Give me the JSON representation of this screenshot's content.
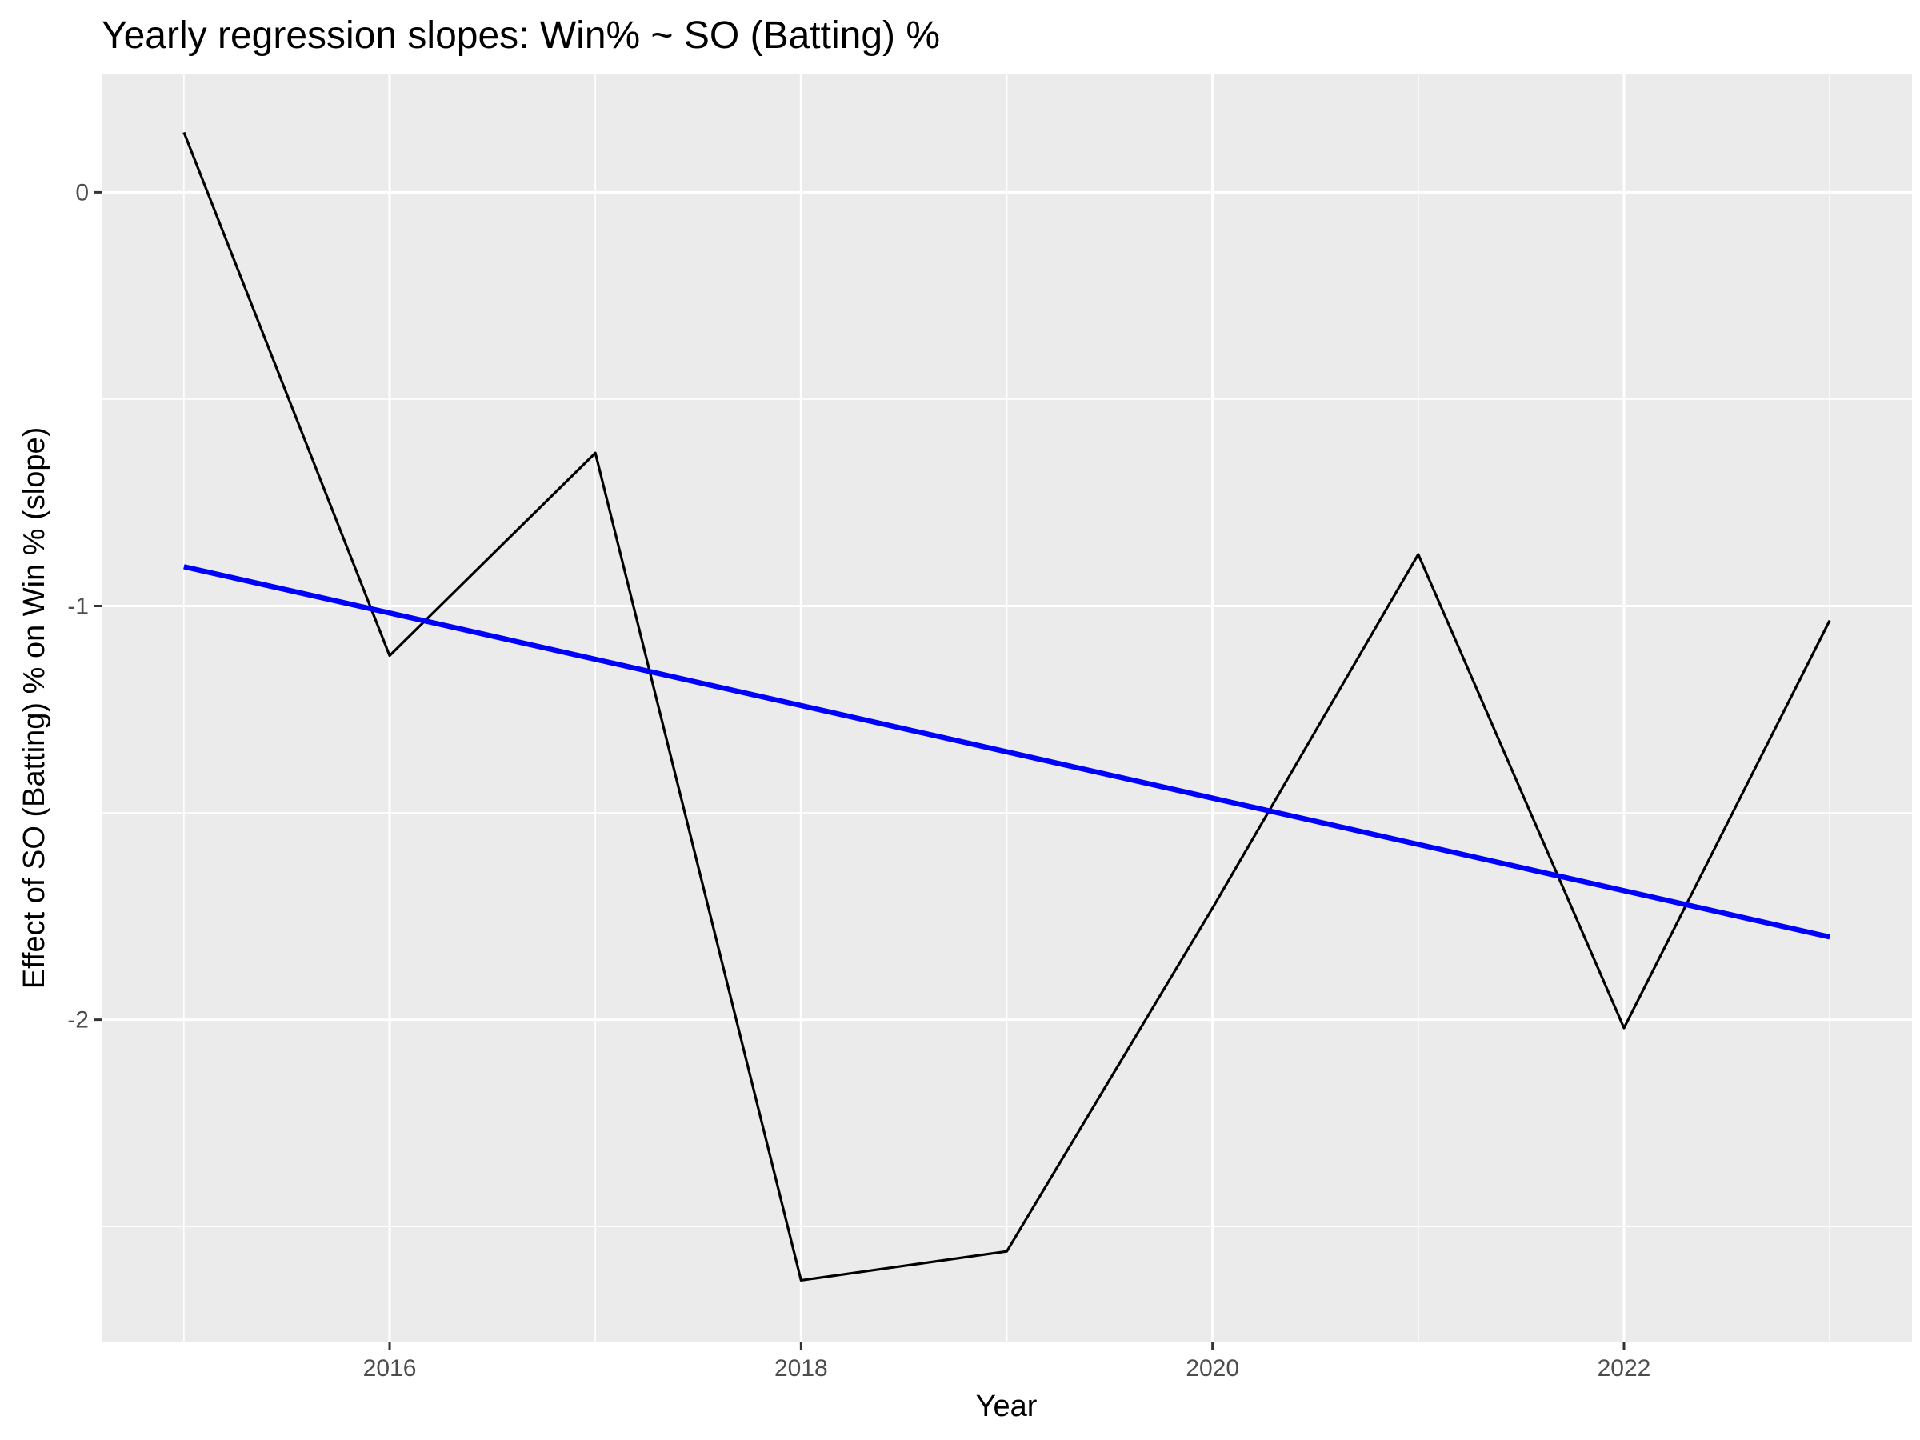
{
  "chart_data": {
    "type": "line",
    "title": "Yearly regression slopes: Win% ~ SO (Batting) %",
    "xlabel": "Year",
    "ylabel": "Effect of SO (Batting) % on Win % (slope)",
    "x": [
      2015,
      2016,
      2017,
      2018,
      2019,
      2020,
      2021,
      2022,
      2023
    ],
    "series": [
      {
        "values": [
          0.145,
          -1.12,
          -0.63,
          -2.63,
          -2.56,
          -1.73,
          -0.875,
          -2.02,
          -1.035
        ],
        "color": "#000000"
      }
    ],
    "trend": {
      "x": [
        2015,
        2023
      ],
      "values": [
        -0.905,
        -1.8
      ],
      "color": "#0000ff"
    },
    "x_ticks": [
      2016,
      2018,
      2020,
      2022
    ],
    "x_tick_labels": [
      "2016",
      "2018",
      "2020",
      "2022"
    ],
    "y_ticks": [
      0,
      -1,
      -2
    ],
    "y_tick_labels": [
      "0",
      "-1",
      "-2"
    ],
    "xlim": [
      2014.6,
      2023.4
    ],
    "ylim": [
      -2.78,
      0.285
    ],
    "grid": true,
    "panel_background": "#ebebeb",
    "grid_color": "#ffffff"
  }
}
